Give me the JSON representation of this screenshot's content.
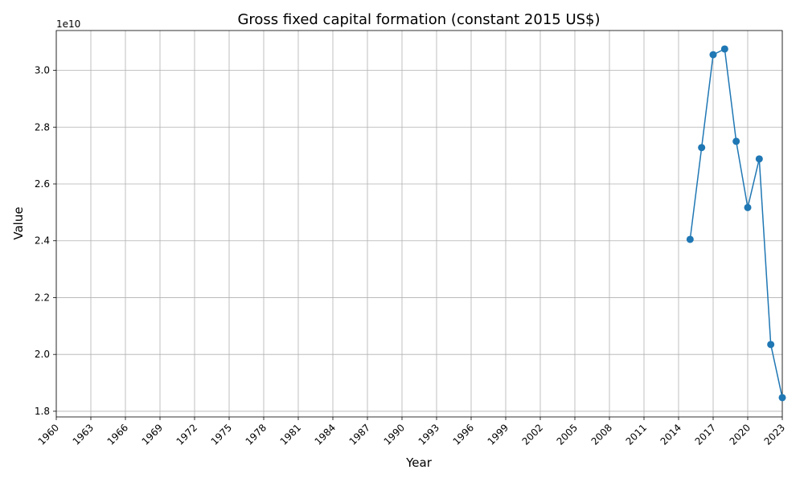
{
  "chart_data": {
    "type": "line",
    "title": "Gross fixed capital formation (constant 2015 US$)",
    "xlabel": "Year",
    "ylabel": "Value",
    "offset_label": "1e10",
    "xlim": [
      1960,
      2023
    ],
    "ylim": [
      17800000000.0,
      31400000000.0
    ],
    "x_ticks": [
      1960,
      1963,
      1966,
      1969,
      1972,
      1975,
      1978,
      1981,
      1984,
      1987,
      1990,
      1993,
      1996,
      1999,
      2002,
      2005,
      2008,
      2011,
      2014,
      2017,
      2020,
      2023
    ],
    "y_ticks": [
      18000000000.0,
      20000000000.0,
      22000000000.0,
      24000000000.0,
      26000000000.0,
      28000000000.0,
      30000000000.0
    ],
    "y_tick_labels": [
      "1.8",
      "2.0",
      "2.2",
      "2.4",
      "2.6",
      "2.8",
      "3.0"
    ],
    "grid": true,
    "color": "#1f77b4",
    "series": [
      {
        "x": [
          2015,
          2016,
          2017,
          2018,
          2019,
          2020,
          2021,
          2022,
          2023
        ],
        "y": [
          24050000000.0,
          27280000000.0,
          30550000000.0,
          30750000000.0,
          27500000000.0,
          25170000000.0,
          26880000000.0,
          20350000000.0,
          18480000000.0
        ]
      }
    ]
  }
}
